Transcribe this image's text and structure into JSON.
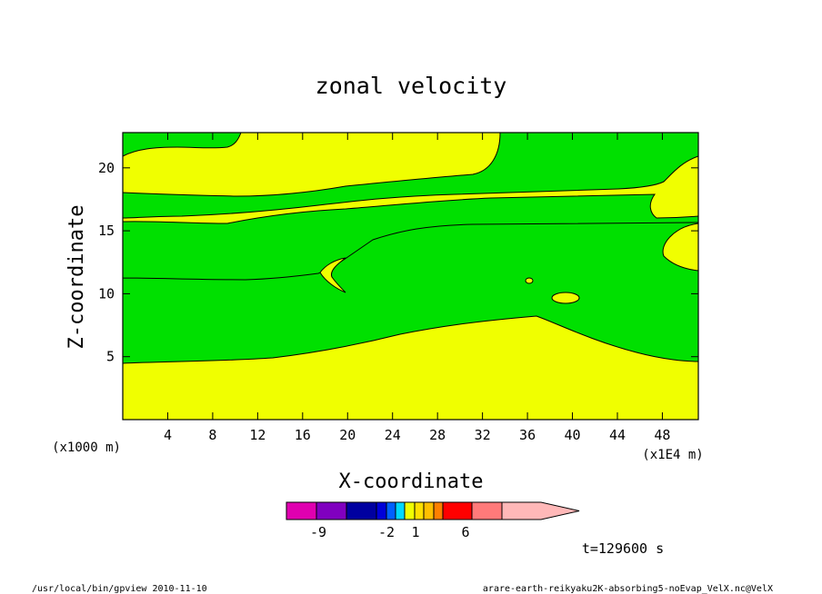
{
  "chart_data": {
    "type": "contour",
    "title": "zonal velocity",
    "xlabel": "X-coordinate",
    "ylabel": "Z-coordinate",
    "x_unit_left": "(x1000 m)",
    "x_unit_right": "(x1E4 m)",
    "x_ticks": [
      "4",
      "8",
      "12",
      "16",
      "20",
      "24",
      "28",
      "32",
      "36",
      "40",
      "44",
      "48"
    ],
    "x_tick_values": [
      4,
      8,
      12,
      16,
      20,
      24,
      28,
      32,
      36,
      40,
      44,
      48
    ],
    "y_ticks": [
      "5",
      "10",
      "15",
      "20"
    ],
    "y_tick_values": [
      5,
      10,
      15,
      20
    ],
    "xlim": [
      0,
      51.2
    ],
    "ylim": [
      0,
      22.8
    ],
    "time_label": "t=129600 s",
    "colorbar": {
      "labels": [
        "-9",
        "-2",
        "1",
        "6"
      ],
      "colors": [
        "#e000b0",
        "#8000c0",
        "#0000a0",
        "#0000d8",
        "#0060ff",
        "#00d8ff",
        "#f0ff00",
        "#ffe000",
        "#ffc000",
        "#ff8000",
        "#ff0000",
        "#ff7a7a",
        "#ffb8b8"
      ]
    },
    "fill_colors": {
      "low": "#00e000",
      "high": "#f0ff00"
    }
  },
  "footer": {
    "left": "/usr/local/bin/gpview  2010-11-10",
    "right": "arare-earth-reikyaku2K-absorbing5-noEvap_VelX.nc@VelX"
  }
}
